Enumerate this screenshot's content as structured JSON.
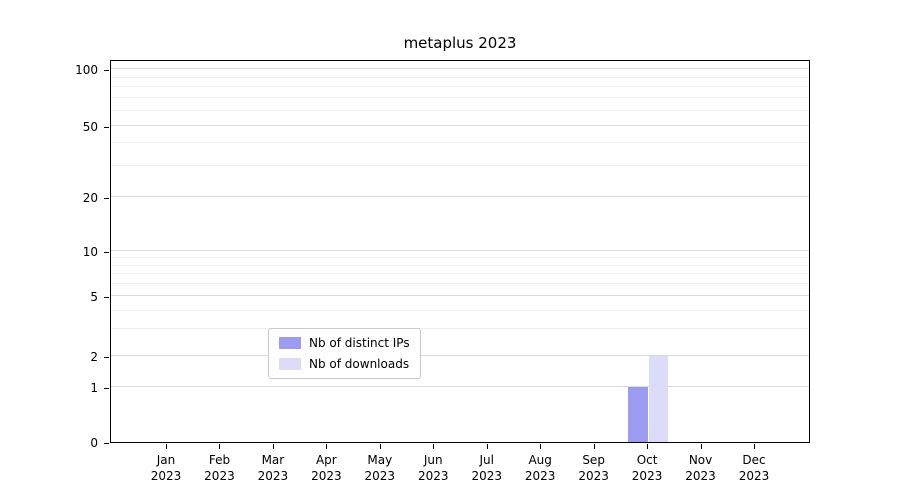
{
  "chart_data": {
    "type": "bar",
    "title": "metaplus 2023",
    "categories": [
      "Jan",
      "Feb",
      "Mar",
      "Apr",
      "May",
      "Jun",
      "Jul",
      "Aug",
      "Sep",
      "Oct",
      "Nov",
      "Dec"
    ],
    "x_year": "2023",
    "series": [
      {
        "name": "Nb of distinct IPs",
        "color": "#9b9bef",
        "values": [
          0,
          0,
          0,
          0,
          0,
          0,
          0,
          0,
          0,
          1,
          0,
          0
        ]
      },
      {
        "name": "Nb of downloads",
        "color": "#dcdcf8",
        "values": [
          0,
          0,
          0,
          0,
          0,
          0,
          0,
          0,
          0,
          2,
          0,
          0
        ]
      }
    ],
    "yscale": "symlog",
    "yticks": [
      0,
      1,
      2,
      5,
      10,
      20,
      50,
      100
    ],
    "y_minor_ticks": [
      3,
      4,
      6,
      7,
      8,
      9,
      30,
      40,
      60,
      70,
      80,
      90
    ],
    "ylim": [
      0,
      110
    ],
    "grid": "horizontal",
    "legend_position": "lower center"
  }
}
